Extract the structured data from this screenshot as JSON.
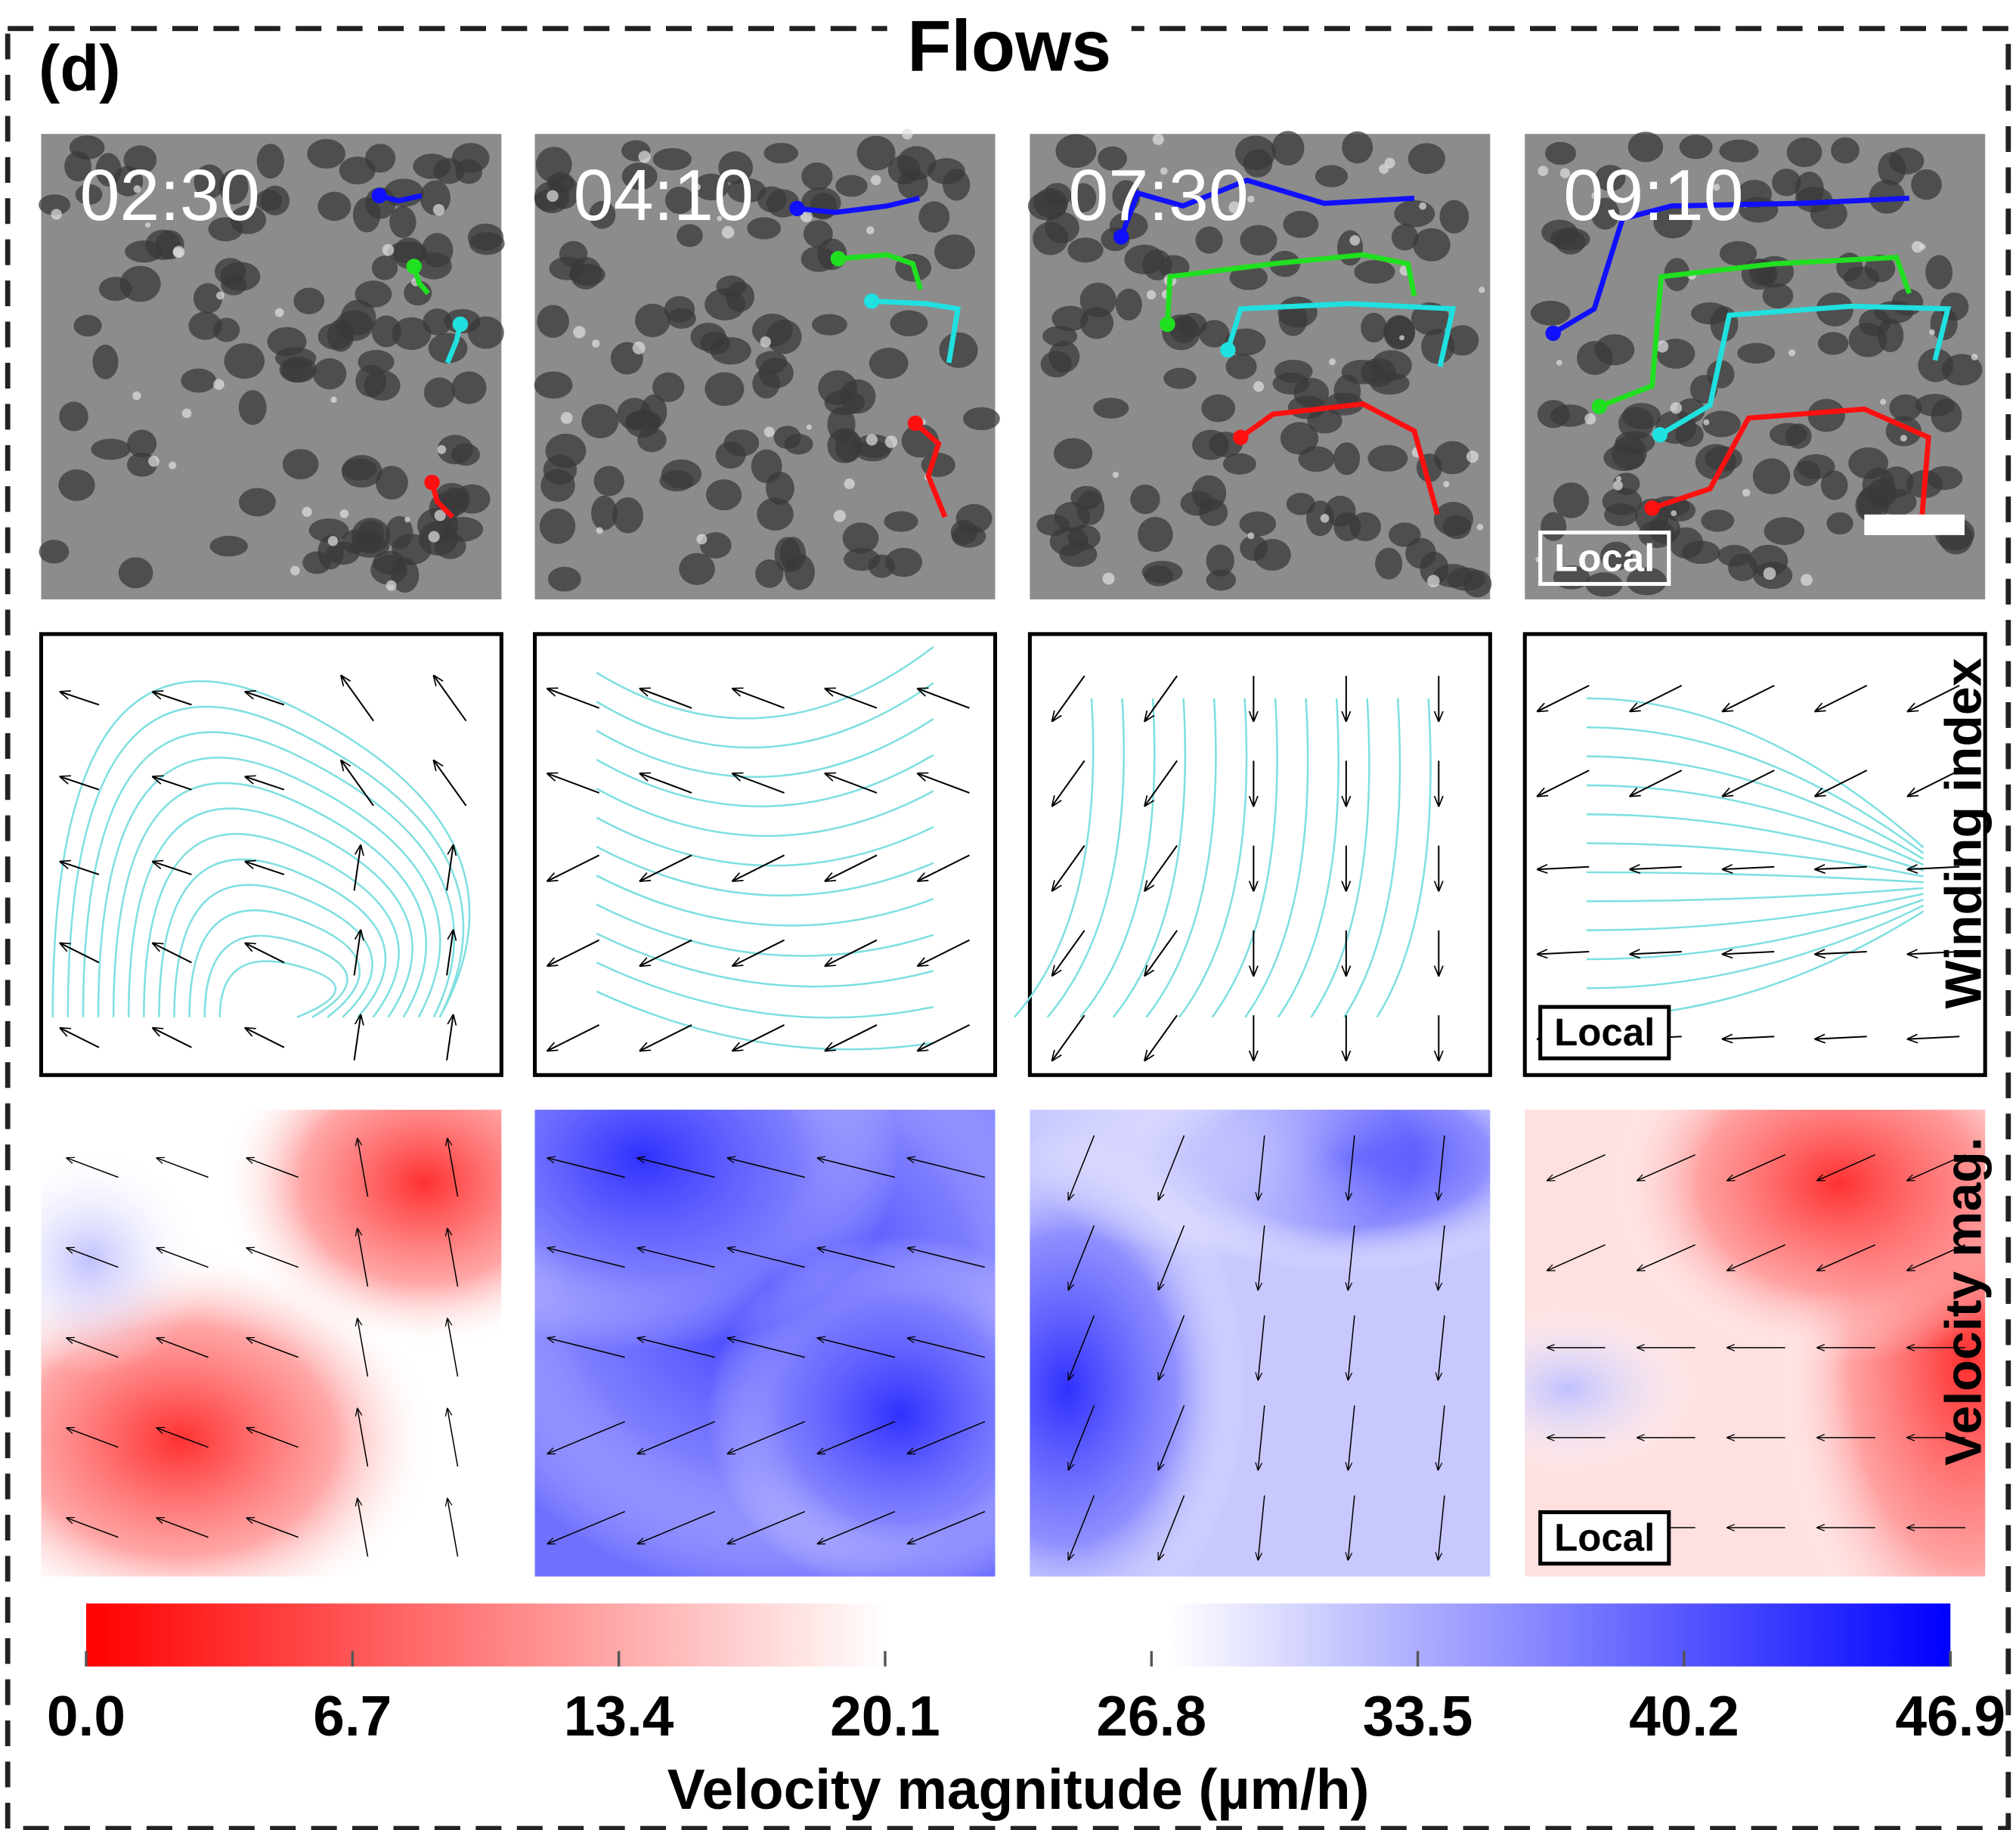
{
  "title": "Flows",
  "panel_label": "(d)",
  "timestamps": [
    "02:30",
    "04:10",
    "07:30",
    "09:10"
  ],
  "local_labels": [
    "Local",
    "Local",
    "Local"
  ],
  "row_labels": [
    "Winding index",
    "Velocity mag."
  ],
  "colorbar": {
    "ticks": [
      {
        "value": 0,
        "label": "0.0"
      },
      6.7,
      13.4,
      20.1,
      26.8,
      33.5,
      40.2,
      46.9
    ],
    "label": "Velocity magnitude (µm/h)"
  }
}
